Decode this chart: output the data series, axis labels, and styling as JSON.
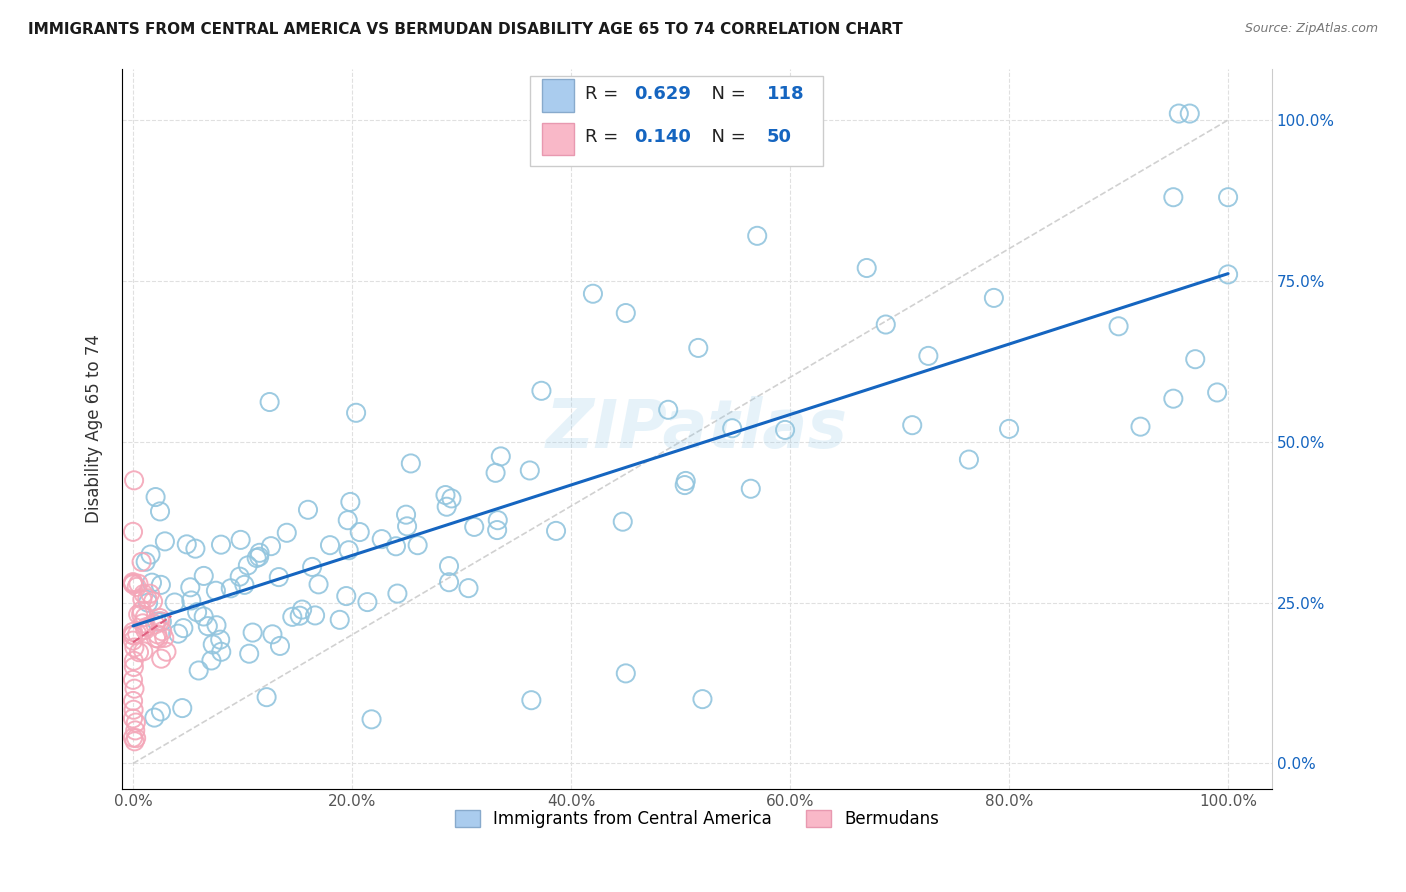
{
  "title": "IMMIGRANTS FROM CENTRAL AMERICA VS BERMUDAN DISABILITY AGE 65 TO 74 CORRELATION CHART",
  "source": "Source: ZipAtlas.com",
  "ylabel": "Disability Age 65 to 74",
  "blue_R": 0.629,
  "blue_N": 118,
  "pink_R": 0.14,
  "pink_N": 50,
  "blue_color": "#92c5de",
  "pink_color": "#f4a6b8",
  "trendline_blue": "#1565c0",
  "trendline_pink": "#e06080",
  "diagonal_color": "#cccccc",
  "background_color": "#ffffff",
  "grid_color": "#e0e0e0",
  "watermark": "ZIPatlas",
  "legend_label_blue": "Immigrants from Central America",
  "legend_label_pink": "Bermudans",
  "legend_text_color": "#1565c0",
  "legend_R_color": "#333333",
  "ytick_color": "#1565c0",
  "xtick_color": "#555555"
}
